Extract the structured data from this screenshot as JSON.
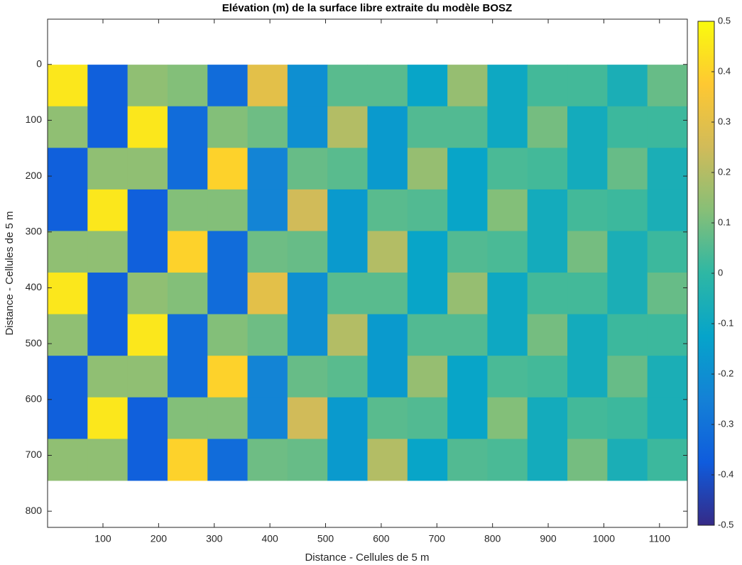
{
  "chart_data": {
    "type": "heatmap",
    "title": "Elévation (m) de la surface libre extraite du modèle BOSZ",
    "xlabel": "Distance - Cellules de 5 m",
    "ylabel": "Distance - Cellules de 5 m",
    "xlim": [
      0.5,
      1150
    ],
    "ylim": [
      -81,
      829
    ],
    "y_reversed": true,
    "xticks": [
      100,
      200,
      300,
      400,
      500,
      600,
      700,
      800,
      900,
      1000,
      1100
    ],
    "yticks": [
      0,
      100,
      200,
      300,
      400,
      500,
      600,
      700,
      800
    ],
    "image_x": [
      0.5,
      1150
    ],
    "image_y": [
      0.5,
      745
    ],
    "clim": [
      -0.5,
      0.5
    ],
    "cticks": [
      -0.5,
      -0.4,
      -0.3,
      -0.2,
      -0.1,
      0,
      0.1,
      0.2,
      0.3,
      0.4,
      0.5
    ],
    "colormap": [
      "#352a87",
      "#0f5cdd",
      "#1481d6",
      "#06a4ca",
      "#2eb7a4",
      "#87bf77",
      "#d1bb59",
      "#fec832",
      "#f9fb0e"
    ],
    "z": [
      [
        0.45,
        -0.36,
        0.14,
        0.12,
        -0.32,
        0.3,
        -0.2,
        0.06,
        0.06,
        -0.12,
        0.15,
        -0.1,
        0.03,
        0.03,
        -0.06,
        0.08
      ],
      [
        0.14,
        -0.36,
        0.45,
        -0.32,
        0.12,
        0.09,
        -0.2,
        0.2,
        -0.16,
        0.05,
        0.05,
        -0.1,
        0.1,
        -0.08,
        0.02,
        0.02
      ],
      [
        -0.36,
        0.14,
        0.14,
        -0.32,
        0.4,
        -0.24,
        0.08,
        0.06,
        -0.16,
        0.15,
        -0.12,
        0.04,
        0.03,
        -0.08,
        0.08,
        -0.06
      ],
      [
        -0.36,
        0.45,
        -0.36,
        0.12,
        0.12,
        -0.24,
        0.25,
        -0.16,
        0.06,
        0.05,
        -0.12,
        0.12,
        -0.08,
        0.03,
        0.02,
        -0.06
      ],
      [
        0.14,
        0.14,
        -0.36,
        0.4,
        -0.32,
        0.09,
        0.08,
        -0.16,
        0.2,
        -0.12,
        0.05,
        0.04,
        -0.08,
        0.1,
        -0.06,
        0.02
      ],
      [
        0.45,
        -0.36,
        0.14,
        0.12,
        -0.32,
        0.3,
        -0.2,
        0.06,
        0.06,
        -0.12,
        0.15,
        -0.1,
        0.03,
        0.03,
        -0.06,
        0.08
      ],
      [
        0.14,
        -0.36,
        0.45,
        -0.32,
        0.12,
        0.09,
        -0.2,
        0.2,
        -0.16,
        0.05,
        0.05,
        -0.1,
        0.1,
        -0.08,
        0.02,
        0.02
      ],
      [
        -0.36,
        0.14,
        0.14,
        -0.32,
        0.4,
        -0.24,
        0.08,
        0.06,
        -0.16,
        0.15,
        -0.12,
        0.04,
        0.03,
        -0.08,
        0.08,
        -0.06
      ],
      [
        -0.36,
        0.45,
        -0.36,
        0.12,
        0.12,
        -0.24,
        0.25,
        -0.16,
        0.06,
        0.05,
        -0.12,
        0.12,
        -0.08,
        0.03,
        0.02,
        -0.06
      ],
      [
        0.14,
        0.14,
        -0.36,
        0.4,
        -0.32,
        0.09,
        0.08,
        -0.16,
        0.2,
        -0.12,
        0.05,
        0.04,
        -0.08,
        0.1,
        -0.06,
        0.02
      ]
    ]
  }
}
